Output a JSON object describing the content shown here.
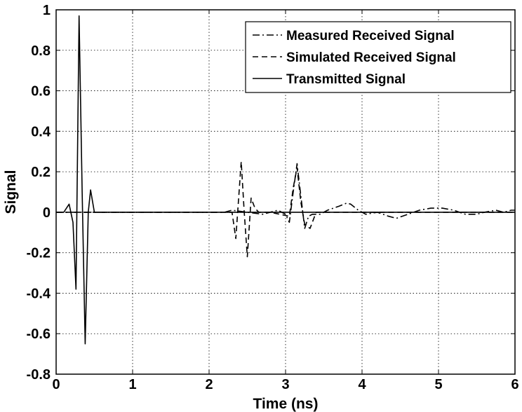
{
  "chart_data": {
    "type": "line",
    "title": "",
    "xlabel": "Time (ns)",
    "ylabel": "Signal",
    "xlim": [
      0,
      6
    ],
    "ylim": [
      -0.8,
      1
    ],
    "xticks": [
      0,
      1,
      2,
      3,
      4,
      5,
      6
    ],
    "xtick_labels": [
      "0",
      "1",
      "2",
      "3",
      "4",
      "5",
      "6"
    ],
    "yticks": [
      -0.8,
      -0.6,
      -0.4,
      -0.2,
      0,
      0.2,
      0.4,
      0.6,
      0.8,
      1
    ],
    "ytick_labels": [
      "-0.8",
      "-0.6",
      "-0.4",
      "-0.2",
      "0",
      "0.2",
      "0.4",
      "0.6",
      "0.8",
      "1"
    ],
    "grid": true,
    "legend_position": "top-right",
    "series": [
      {
        "name": "Measured Received Signal",
        "style": "dashdot",
        "color": "#000000",
        "x": [
          0,
          2.2,
          2.3,
          2.5,
          2.7,
          2.9,
          3.0,
          3.05,
          3.1,
          3.15,
          3.2,
          3.25,
          3.3,
          3.35,
          3.45,
          3.55,
          3.7,
          3.8,
          3.85,
          3.95,
          4.05,
          4.2,
          4.35,
          4.45,
          4.6,
          4.75,
          4.9,
          5.05,
          5.2,
          5.35,
          5.5,
          5.6,
          5.75,
          5.85,
          5.95,
          6.0
        ],
        "y": [
          0,
          0,
          0.01,
          0.0,
          -0.01,
          0.01,
          -0.01,
          -0.05,
          0.1,
          0.24,
          0.08,
          -0.08,
          -0.02,
          -0.01,
          -0.01,
          0.01,
          0.03,
          0.045,
          0.04,
          0.01,
          -0.01,
          0.0,
          -0.02,
          -0.03,
          -0.01,
          0.01,
          0.02,
          0.02,
          0.01,
          -0.01,
          -0.01,
          0.0,
          0.01,
          0.0,
          0.01,
          0.01
        ]
      },
      {
        "name": "Simulated Received Signal",
        "style": "dashed",
        "color": "#000000",
        "x": [
          0,
          2.2,
          2.3,
          2.35,
          2.42,
          2.46,
          2.5,
          2.55,
          2.6,
          2.65,
          2.8,
          3.05,
          3.1,
          3.15,
          3.2,
          3.25,
          3.32,
          3.4,
          3.6,
          6.0
        ],
        "y": [
          0,
          0,
          0.0,
          -0.13,
          0.25,
          0.0,
          -0.22,
          0.07,
          0.02,
          0.0,
          0.0,
          -0.02,
          0.12,
          0.22,
          0.05,
          -0.06,
          -0.08,
          0.0,
          0.0,
          0.0
        ]
      },
      {
        "name": "Transmitted Signal",
        "style": "solid",
        "color": "#000000",
        "x": [
          0,
          0.1,
          0.17,
          0.22,
          0.26,
          0.3,
          0.34,
          0.38,
          0.42,
          0.45,
          0.5,
          0.6,
          6.0
        ],
        "y": [
          0,
          0.0,
          0.04,
          -0.05,
          -0.38,
          0.97,
          0.1,
          -0.65,
          0.0,
          0.11,
          0.0,
          0.0,
          0.0
        ]
      }
    ]
  }
}
